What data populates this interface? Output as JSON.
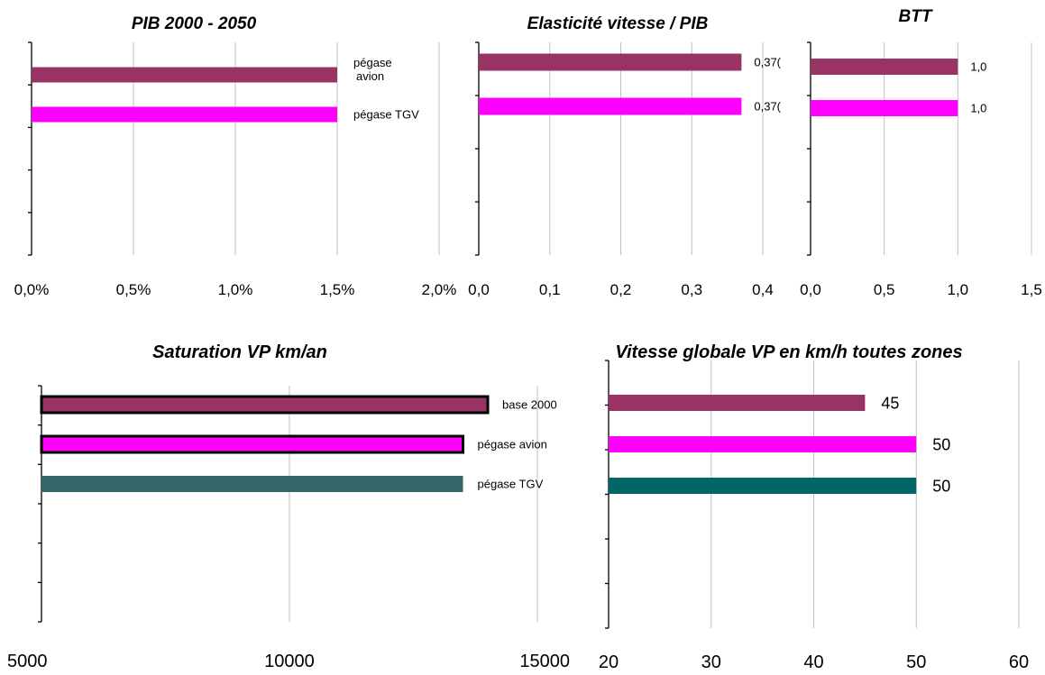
{
  "chart_data": [
    {
      "type": "bar",
      "orientation": "horizontal",
      "title": "PIB 2000 - 2050",
      "xlim": [
        0,
        0.02
      ],
      "tick_labels": [
        "0,0%",
        "0,5%",
        "1,0%",
        "1,5%",
        "2,0%"
      ],
      "grid": true,
      "bars": [
        {
          "value": 0.015,
          "color": "#993366",
          "label_lines": [
            "pégase",
            "avion"
          ]
        },
        {
          "value": 0.015,
          "color": "#ff00ff",
          "label_lines": [
            "pégase TGV"
          ]
        }
      ]
    },
    {
      "type": "bar",
      "orientation": "horizontal",
      "title": "Elasticité vitesse / PIB",
      "xlim": [
        0,
        0.4
      ],
      "tick_labels": [
        "0,0",
        "0,1",
        "0,2",
        "0,3",
        "0,4"
      ],
      "grid": true,
      "bars": [
        {
          "value": 0.37,
          "color": "#993366",
          "label_lines": [
            "0,37("
          ]
        },
        {
          "value": 0.37,
          "color": "#ff00ff",
          "label_lines": [
            "0,37("
          ]
        }
      ]
    },
    {
      "type": "bar",
      "orientation": "horizontal",
      "title": "BTT",
      "xlim": [
        0,
        1.5
      ],
      "tick_labels": [
        "0,0",
        "0,5",
        "1,0",
        "1,5"
      ],
      "grid": true,
      "bars": [
        {
          "value": 1.0,
          "color": "#993366",
          "label_lines": [
            "1,0"
          ]
        },
        {
          "value": 1.0,
          "color": "#ff00ff",
          "label_lines": [
            "1,0"
          ]
        }
      ]
    },
    {
      "type": "bar",
      "orientation": "horizontal",
      "title": "Saturation VP km/an",
      "xlim": [
        5000,
        15000
      ],
      "tick_labels": [
        "5000",
        "10000",
        "15000"
      ],
      "grid": true,
      "bars": [
        {
          "value": 14000,
          "color": "#993366",
          "outlined": true,
          "label_lines": [
            "base 2000"
          ]
        },
        {
          "value": 13500,
          "color": "#ff00ff",
          "outlined": true,
          "label_lines": [
            "pégase avion"
          ]
        },
        {
          "value": 13500,
          "color": "#336666",
          "outlined": false,
          "label_lines": [
            "pégase TGV"
          ]
        }
      ]
    },
    {
      "type": "bar",
      "orientation": "horizontal",
      "title": "Vitesse globale VP en km/h toutes zones",
      "xlim": [
        20,
        60
      ],
      "tick_labels": [
        "20",
        "30",
        "40",
        "50",
        "60"
      ],
      "grid": true,
      "bars": [
        {
          "value": 45,
          "color": "#993366",
          "label_lines": [
            "45"
          ]
        },
        {
          "value": 50,
          "color": "#ff00ff",
          "label_lines": [
            "50"
          ]
        },
        {
          "value": 50,
          "color": "#006666",
          "label_lines": [
            "50"
          ]
        }
      ]
    }
  ]
}
